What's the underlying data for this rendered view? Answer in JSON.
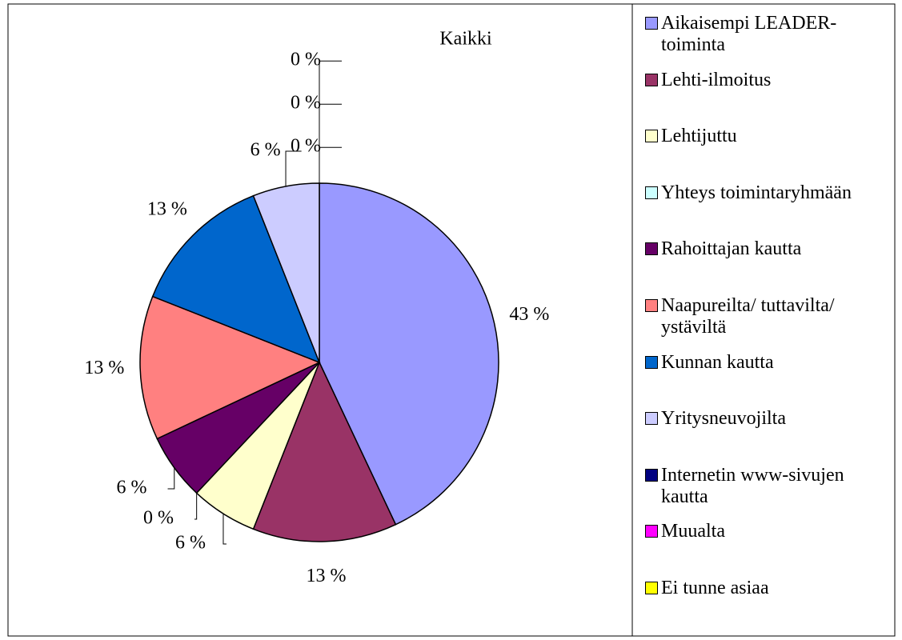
{
  "chart_data": {
    "type": "pie",
    "title": "Kaikki",
    "categories": [
      "Aikaisempi LEADER-toiminta",
      "Lehti-ilmoitus",
      "Lehtijuttu",
      "Yhteys toimintaryhmään",
      "Rahoittajan kautta",
      "Naapureilta/ tuttavilta/ ystäviltä",
      "Kunnan kautta",
      "Yritysneuvojilta",
      "Internetin www-sivujen kautta",
      "Muualta",
      "Ei tunne asiaa"
    ],
    "values": [
      43,
      13,
      6,
      0,
      6,
      13,
      13,
      6,
      0,
      0,
      0
    ],
    "value_labels": [
      "43 %",
      "13 %",
      "6 %",
      "0 %",
      "6 %",
      "13 %",
      "13 %",
      "6 %",
      "0 %",
      "0 %",
      "0 %"
    ],
    "colors": [
      "#9999ff",
      "#993366",
      "#ffffcc",
      "#ccffff",
      "#660066",
      "#ff8080",
      "#0066cc",
      "#ccccff",
      "#000080",
      "#ff00ff",
      "#ffff00"
    ],
    "legend": "right"
  }
}
